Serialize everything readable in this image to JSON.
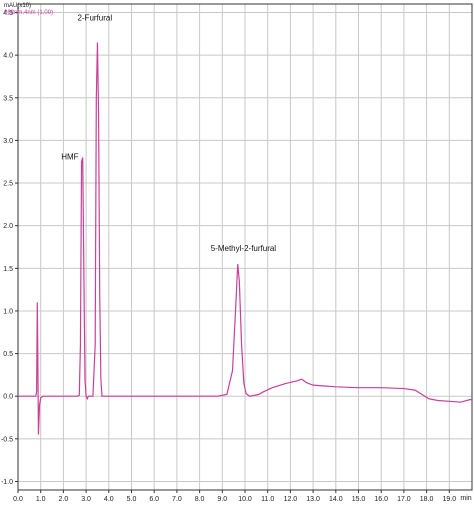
{
  "chart_data": {
    "type": "line",
    "ylabel": "mAU(x10)",
    "legend": "268nm,4nm (1.00)",
    "x_tick_labels": [
      "0.0",
      "1.0",
      "2.0",
      "3.0",
      "4.0",
      "5.0",
      "6.0",
      "7.0",
      "8.0",
      "9.0",
      "10.0",
      "11.0",
      "12.0",
      "13.0",
      "14.0",
      "15.0",
      "16.0",
      "17.0",
      "18.0",
      "19.0"
    ],
    "x_unit_label": "min",
    "y_tick_labels": [
      "-1.0",
      "-0.5",
      "0.0",
      "0.5",
      "1.0",
      "1.5",
      "2.0",
      "2.5",
      "3.0",
      "3.5",
      "4.0",
      "4.5"
    ],
    "xlim": [
      0,
      20.0
    ],
    "ylim": [
      -1.1,
      4.6
    ],
    "grid": true,
    "series": [
      {
        "color": "#c8409a",
        "points": [
          [
            0.0,
            0.0
          ],
          [
            0.78,
            0.0
          ],
          [
            0.82,
            0.05
          ],
          [
            0.85,
            1.1
          ],
          [
            0.87,
            0.6
          ],
          [
            0.9,
            -0.45
          ],
          [
            0.95,
            -0.1
          ],
          [
            1.0,
            -0.02
          ],
          [
            1.1,
            0.0
          ],
          [
            2.6,
            0.0
          ],
          [
            2.7,
            0.01
          ],
          [
            2.75,
            0.6
          ],
          [
            2.8,
            2.75
          ],
          [
            2.85,
            2.8
          ],
          [
            2.9,
            1.5
          ],
          [
            2.95,
            0.2
          ],
          [
            3.0,
            0.0
          ],
          [
            3.05,
            -0.03
          ],
          [
            3.1,
            0.0
          ],
          [
            3.3,
            0.0
          ],
          [
            3.4,
            0.6
          ],
          [
            3.45,
            3.5
          ],
          [
            3.5,
            4.15
          ],
          [
            3.55,
            3.3
          ],
          [
            3.6,
            1.2
          ],
          [
            3.65,
            0.2
          ],
          [
            3.7,
            0.0
          ],
          [
            8.8,
            0.0
          ],
          [
            9.2,
            0.02
          ],
          [
            9.45,
            0.3
          ],
          [
            9.6,
            1.1
          ],
          [
            9.68,
            1.55
          ],
          [
            9.75,
            1.35
          ],
          [
            9.85,
            0.6
          ],
          [
            9.95,
            0.15
          ],
          [
            10.05,
            0.03
          ],
          [
            10.2,
            0.0
          ],
          [
            10.6,
            0.02
          ],
          [
            10.8,
            0.05
          ],
          [
            11.2,
            0.1
          ],
          [
            11.8,
            0.15
          ],
          [
            12.3,
            0.18
          ],
          [
            12.5,
            0.2
          ],
          [
            12.7,
            0.16
          ],
          [
            13.0,
            0.13
          ],
          [
            13.5,
            0.12
          ],
          [
            14.0,
            0.11
          ],
          [
            15.0,
            0.1
          ],
          [
            16.0,
            0.1
          ],
          [
            17.0,
            0.09
          ],
          [
            17.5,
            0.07
          ],
          [
            17.8,
            0.02
          ],
          [
            18.1,
            -0.03
          ],
          [
            18.5,
            -0.05
          ],
          [
            19.0,
            -0.06
          ],
          [
            19.5,
            -0.07
          ],
          [
            19.9,
            -0.04
          ],
          [
            20.0,
            -0.04
          ]
        ]
      }
    ],
    "annotations": [
      {
        "text": "HMF",
        "x": 2.8,
        "y": 2.8
      },
      {
        "text": "2-Furfural",
        "x": 3.5,
        "y": 4.15
      },
      {
        "text": "5-Methyl-2-furfural",
        "x": 9.68,
        "y": 1.55
      }
    ]
  }
}
